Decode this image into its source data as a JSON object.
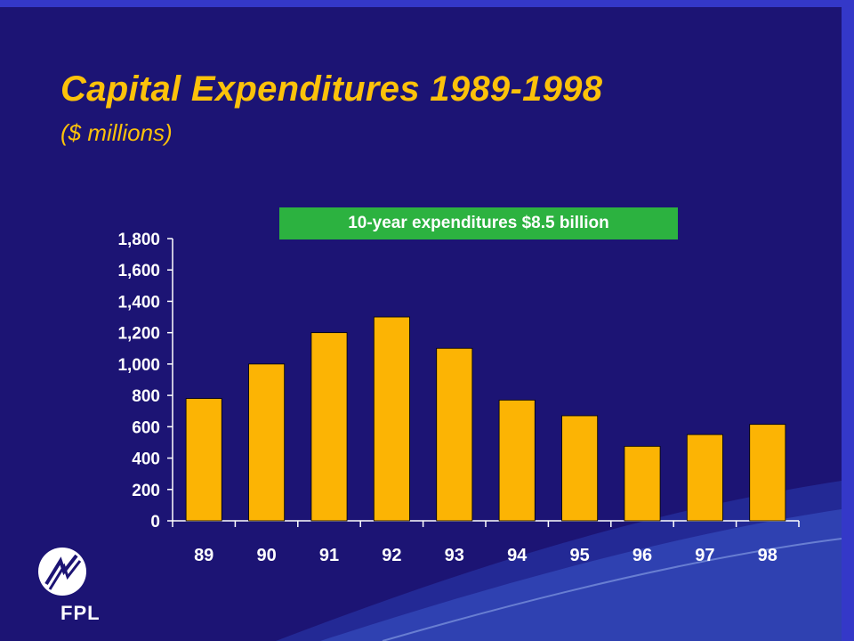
{
  "slide": {
    "title": "Capital Expenditures 1989-1998",
    "subtitle": "($ millions)",
    "callout": "10-year expenditures $8.5 billion",
    "logo_text": "FPL"
  },
  "colors": {
    "background": "#1c1474",
    "title": "#fcc20a",
    "bar": "#fcb404",
    "callout_bg": "#2cb240",
    "accent": "#3438c8"
  },
  "icons": {
    "logo": "fpl-logo-icon"
  },
  "chart_data": {
    "type": "bar",
    "categories": [
      "89",
      "90",
      "91",
      "92",
      "93",
      "94",
      "95",
      "96",
      "97",
      "98"
    ],
    "values": [
      780,
      1000,
      1200,
      1300,
      1100,
      770,
      670,
      475,
      550,
      615
    ],
    "ylim": [
      0,
      1800
    ],
    "yticks": [
      0,
      200,
      400,
      600,
      800,
      1000,
      1200,
      1400,
      1600,
      1800
    ],
    "ytick_labels": [
      "0",
      "200",
      "400",
      "600",
      "800",
      "1,000",
      "1,200",
      "1,400",
      "1,600",
      "1,800"
    ],
    "title": "",
    "xlabel": "",
    "ylabel": "",
    "grid": false,
    "legend": "none"
  }
}
